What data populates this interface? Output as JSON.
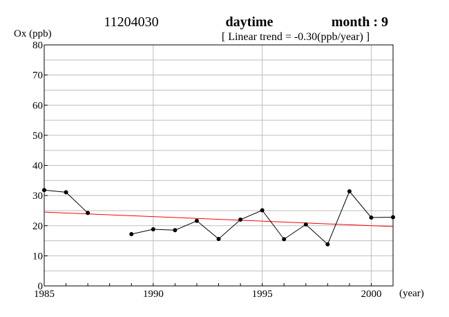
{
  "header": {
    "station_id": "11204030",
    "period": "daytime",
    "month_label": "month : 9",
    "trend_label": "[ Linear trend = -0.30(ppb/year) ]"
  },
  "chart_data": {
    "type": "line",
    "title": "",
    "ylabel": "Ox (ppb)",
    "xlabel": "(year)",
    "xlim": [
      1985,
      2001
    ],
    "ylim": [
      0,
      80
    ],
    "x_ticks": [
      1985,
      1990,
      1995,
      2000
    ],
    "y_ticks": [
      0,
      10,
      20,
      30,
      40,
      50,
      60,
      70,
      80
    ],
    "grid": true,
    "series": [
      {
        "color": "#000000",
        "points": [
          [
            1985,
            31.8
          ],
          [
            1986,
            31.1
          ],
          [
            1987,
            24.2
          ],
          [
            1988,
            null
          ],
          [
            1989,
            17.2
          ],
          [
            1990,
            18.8
          ],
          [
            1991,
            18.5
          ],
          [
            1992,
            21.6
          ],
          [
            1993,
            15.6
          ],
          [
            1994,
            22.0
          ],
          [
            1995,
            25.1
          ],
          [
            1996,
            15.5
          ],
          [
            1997,
            20.4
          ],
          [
            1998,
            13.8
          ],
          [
            1999,
            31.4
          ],
          [
            2000,
            22.7
          ],
          [
            2001,
            22.8
          ]
        ]
      }
    ],
    "trend": {
      "color": "#ff0000",
      "x": [
        1985,
        2001
      ],
      "y": [
        24.5,
        19.7
      ],
      "slope": -0.3
    }
  }
}
